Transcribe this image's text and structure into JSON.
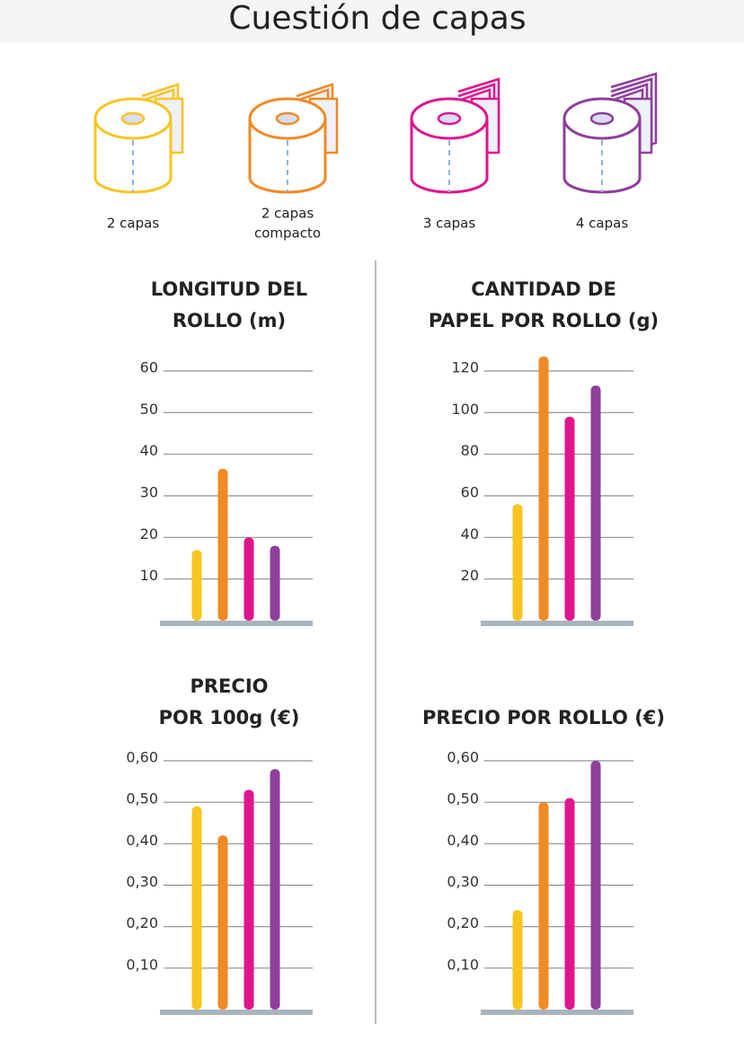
{
  "title": "Cuestión de capas",
  "legend": {
    "items": [
      {
        "label": [
          "2 capas"
        ],
        "color": "#f7c51e"
      },
      {
        "label": [
          "2 capas",
          "compacto"
        ],
        "color": "#f08a24"
      },
      {
        "label": [
          "3 capas"
        ],
        "color": "#e0158c"
      },
      {
        "label": [
          "4 capas"
        ],
        "color": "#8e3f9a"
      }
    ]
  },
  "chart_data": [
    {
      "type": "bar",
      "title": [
        "LONGITUD DEL",
        "ROLLO (m)"
      ],
      "values": [
        17,
        36.5,
        20,
        18
      ],
      "ylim": [
        0,
        60
      ],
      "yticks": [
        10,
        20,
        30,
        40,
        50,
        60
      ],
      "grid": true
    },
    {
      "type": "bar",
      "title": [
        "CANTIDAD DE",
        "PAPEL POR ROLLO (g)"
      ],
      "values": [
        56,
        127,
        98,
        113
      ],
      "ylim": [
        0,
        120
      ],
      "yticks": [
        20,
        40,
        60,
        80,
        100,
        120
      ],
      "grid": true
    },
    {
      "type": "bar",
      "title": [
        "PRECIO",
        "POR 100g (€)"
      ],
      "values": [
        0.49,
        0.42,
        0.53,
        0.58
      ],
      "ylim": [
        0,
        0.6
      ],
      "yticks": [
        {
          "value": 0.1,
          "label": "0,10"
        },
        {
          "value": 0.2,
          "label": "0,20"
        },
        {
          "value": 0.3,
          "label": "0,30"
        },
        {
          "value": 0.4,
          "label": "0,40"
        },
        {
          "value": 0.5,
          "label": "0,50"
        },
        {
          "value": 0.6,
          "label": "0,60"
        }
      ],
      "grid": true
    },
    {
      "type": "bar",
      "title": [
        "PRECIO POR ROLLO (€)"
      ],
      "values": [
        0.24,
        0.5,
        0.51,
        0.6
      ],
      "ylim": [
        0,
        0.6
      ],
      "yticks": [
        {
          "value": 0.1,
          "label": "0,10"
        },
        {
          "value": 0.2,
          "label": "0,20"
        },
        {
          "value": 0.3,
          "label": "0,30"
        },
        {
          "value": 0.4,
          "label": "0,40"
        },
        {
          "value": 0.5,
          "label": "0,50"
        },
        {
          "value": 0.6,
          "label": "0,60"
        }
      ],
      "grid": true
    }
  ]
}
